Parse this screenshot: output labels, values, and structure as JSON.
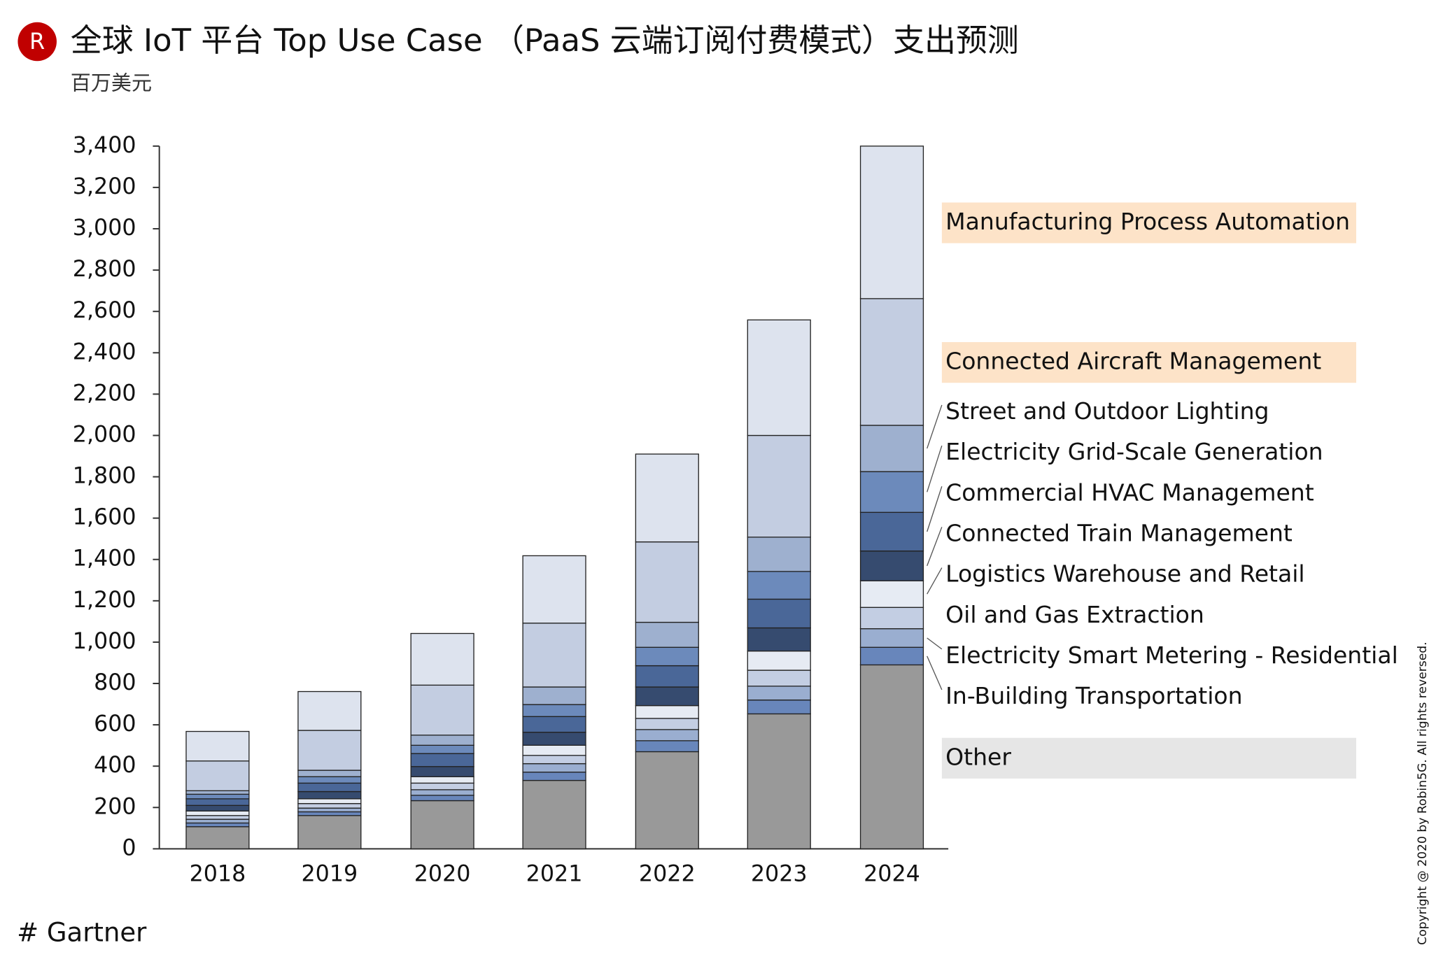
{
  "chart_data": {
    "type": "stacked-bar",
    "logo": "R",
    "title": "全球 IoT 平台 Top Use Case （PaaS 云端订阅付费模式）支出预测",
    "subtitle": "百万美元",
    "source": "# Gartner",
    "copyright": "Copyright @ 2020 by Robin5G. All rights reversed.",
    "categories": [
      "2018",
      "2019",
      "2020",
      "2021",
      "2022",
      "2023",
      "2024"
    ],
    "ylim": [
      0,
      3400
    ],
    "yticks": [
      0,
      200,
      400,
      600,
      800,
      {
        "value": 1000,
        "label": "1,000"
      },
      {
        "value": 1200,
        "label": "1,200"
      },
      {
        "value": 1400,
        "label": "1,400"
      },
      {
        "value": 1600,
        "label": "1,600"
      },
      {
        "value": 1800,
        "label": "1,800"
      },
      {
        "value": 2000,
        "label": "2,000"
      },
      {
        "value": 2200,
        "label": "2,200"
      },
      {
        "value": 2400,
        "label": "2,400"
      },
      {
        "value": 2600,
        "label": "2,600"
      },
      {
        "value": 2800,
        "label": "2,800"
      },
      {
        "value": 3000,
        "label": "3,000"
      },
      {
        "value": 3200,
        "label": "3,200"
      },
      {
        "value": 3400,
        "label": "3,400"
      }
    ],
    "series": [
      {
        "name": "Other",
        "color": "#999999",
        "values": [
          107,
          161,
          233,
          331,
          470,
          653,
          890
        ]
      },
      {
        "name": "In-Building Transportation",
        "color": "#6886bb",
        "values": [
          18,
          18,
          26,
          40,
          53,
          67,
          85
        ]
      },
      {
        "name": "Electricity Smart Metering - Residential",
        "color": "#9aaed0",
        "values": [
          18,
          18,
          27,
          41,
          54,
          67,
          90
        ]
      },
      {
        "name": "Oil and Gas Extraction",
        "color": "#c3cee3",
        "values": [
          18,
          22,
          32,
          40,
          54,
          77,
          103
        ]
      },
      {
        "name": "Logistics Warehouse and Retail",
        "color": "#e6ebf3",
        "values": [
          22,
          23,
          31,
          49,
          62,
          93,
          129
        ]
      },
      {
        "name": "Connected Train Management",
        "color": "#364b6f",
        "values": [
          27,
          35,
          49,
          63,
          90,
          112,
          144
        ]
      },
      {
        "name": "Commercial HVAC Management",
        "color": "#4a6798",
        "values": [
          32,
          41,
          63,
          76,
          103,
          139,
          187
        ]
      },
      {
        "name": "Electricity Grid-Scale Generation",
        "color": "#6c8abb",
        "values": [
          22,
          31,
          40,
          58,
          89,
          134,
          197
        ]
      },
      {
        "name": "Street and Outdoor Lighting",
        "color": "#9eb0cf",
        "values": [
          17,
          31,
          49,
          85,
          121,
          166,
          224
        ]
      },
      {
        "name": "Connected Aircraft Management",
        "color": "#c3cde1",
        "values": [
          144,
          193,
          242,
          309,
          389,
          492,
          613
        ]
      },
      {
        "name": "Manufacturing Process Automation",
        "color": "#dde3ee",
        "values": [
          143,
          188,
          250,
          326,
          425,
          559,
          738
        ]
      }
    ]
  }
}
